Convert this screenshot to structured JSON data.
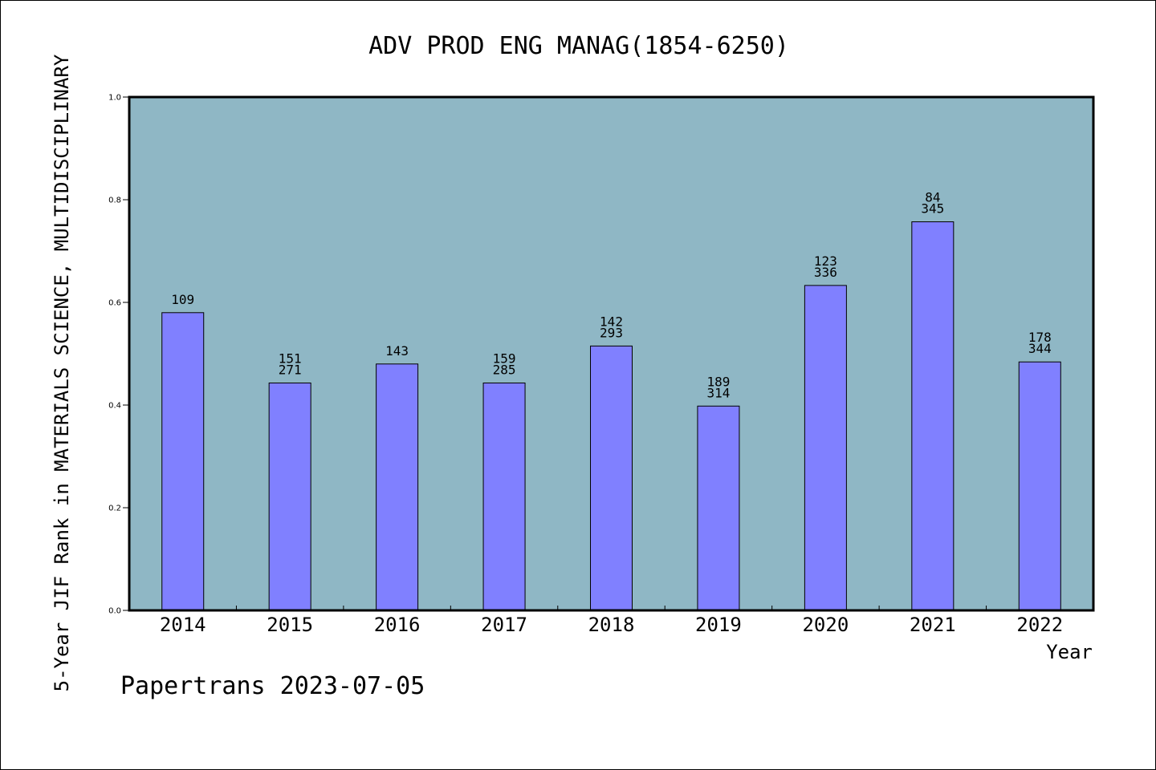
{
  "chart_data": {
    "type": "bar",
    "title": "ADV PROD ENG MANAG(1854-6250)",
    "xlabel": "Year",
    "ylabel": "5-Year JIF Rank in MATERIALS SCIENCE, MULTIDISCIPLINARY",
    "ylim": [
      0.0,
      1.0
    ],
    "yticks": [
      "0.0",
      "0.2",
      "0.4",
      "0.6",
      "0.8",
      "1.0"
    ],
    "categories": [
      "2014",
      "2015",
      "2016",
      "2017",
      "2018",
      "2019",
      "2020",
      "2021",
      "2022"
    ],
    "values": [
      0.58,
      0.443,
      0.48,
      0.443,
      0.515,
      0.398,
      0.633,
      0.757,
      0.484
    ],
    "labels": [
      [
        "109"
      ],
      [
        "151",
        "271"
      ],
      [
        "143"
      ],
      [
        "159",
        "285"
      ],
      [
        "142",
        "293"
      ],
      [
        "189",
        "314"
      ],
      [
        "123",
        "336"
      ],
      [
        "84",
        "345"
      ],
      [
        "178",
        "344"
      ]
    ],
    "legend": "none",
    "grid": false,
    "colors": {
      "plot_background": "#8fb7c5",
      "bar_fill": "#8080ff",
      "bar_stroke": "#000000",
      "axis": "#000000"
    }
  },
  "watermark": "Papertrans 2023-07-05"
}
